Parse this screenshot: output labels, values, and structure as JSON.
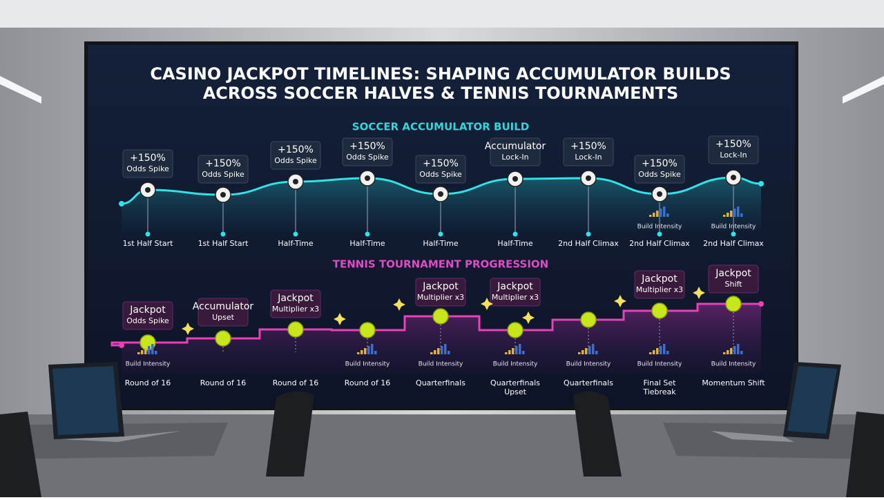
{
  "title": [
    "CASINO JACKPOT TIMELINES: SHAPING ACCUMULATOR BUILDS",
    "ACROSS SOCCER HALVES & TENNIS TOURNAMENTS"
  ],
  "soccer": {
    "heading": "SOCCER ACCUMULATOR BUILD",
    "events": [
      {
        "callout": [
          "+150%",
          "Odds Spike"
        ],
        "label": "1st Half Start"
      },
      {
        "callout": [
          "+150%",
          "Odds Spike"
        ],
        "label": "1st Half Start"
      },
      {
        "callout": [
          "+150%",
          "Odds Spike"
        ],
        "label": "Half-Time"
      },
      {
        "callout": [
          "+150%",
          "Odds Spike"
        ],
        "label": "Half-Time"
      },
      {
        "callout": [
          "+150%",
          "Odds Spike"
        ],
        "label": "Half-Time"
      },
      {
        "callout": [
          "Accumulator",
          "Lock-In"
        ],
        "label": "Half-Time"
      },
      {
        "callout": [
          "+150%",
          "Lock-In"
        ],
        "label": "2nd Half Climax"
      },
      {
        "callout": [
          "+150%",
          "Odds Spike"
        ],
        "intensity": "Build Intensity",
        "label": "2nd Half Climax"
      },
      {
        "callout": [
          "+150%",
          "Lock-In"
        ],
        "intensity": "Build Intensity",
        "label": "2nd Half Climax"
      }
    ]
  },
  "tennis": {
    "heading": "TENNIS TOURNAMENT PROGRESSION",
    "events": [
      {
        "callout": [
          "Jackpot",
          "Odds Spike"
        ],
        "intensity": "Build Intensity",
        "label": "Round of 16"
      },
      {
        "callout": [
          "Accumulator",
          "Upset"
        ],
        "label": "Round of 16"
      },
      {
        "callout": [
          "Jackpot",
          "Multiplier x3"
        ],
        "label": "Round of 16"
      },
      {
        "intensity": "Build Intensity",
        "label": "Round of 16"
      },
      {
        "callout": [
          "Jackpot",
          "Multiplier x3"
        ],
        "intensity": "Build Intensity",
        "label": "Quarterfinals"
      },
      {
        "callout": [
          "Jackpot",
          "Multiplier x3"
        ],
        "intensity": "Build Intensity",
        "label": [
          "Quarterfinals",
          "Upset"
        ]
      },
      {
        "intensity": "Build Intensity",
        "label": "Quarterfinals"
      },
      {
        "callout": [
          "Jackpot",
          "Multiplier x3"
        ],
        "intensity": "Build Intensity",
        "label": [
          "Final Set",
          "Tiebreak"
        ]
      },
      {
        "callout": [
          "Jackpot",
          "Shift"
        ],
        "intensity": "Build Intensity",
        "label": "Momentum Shift"
      }
    ]
  }
}
